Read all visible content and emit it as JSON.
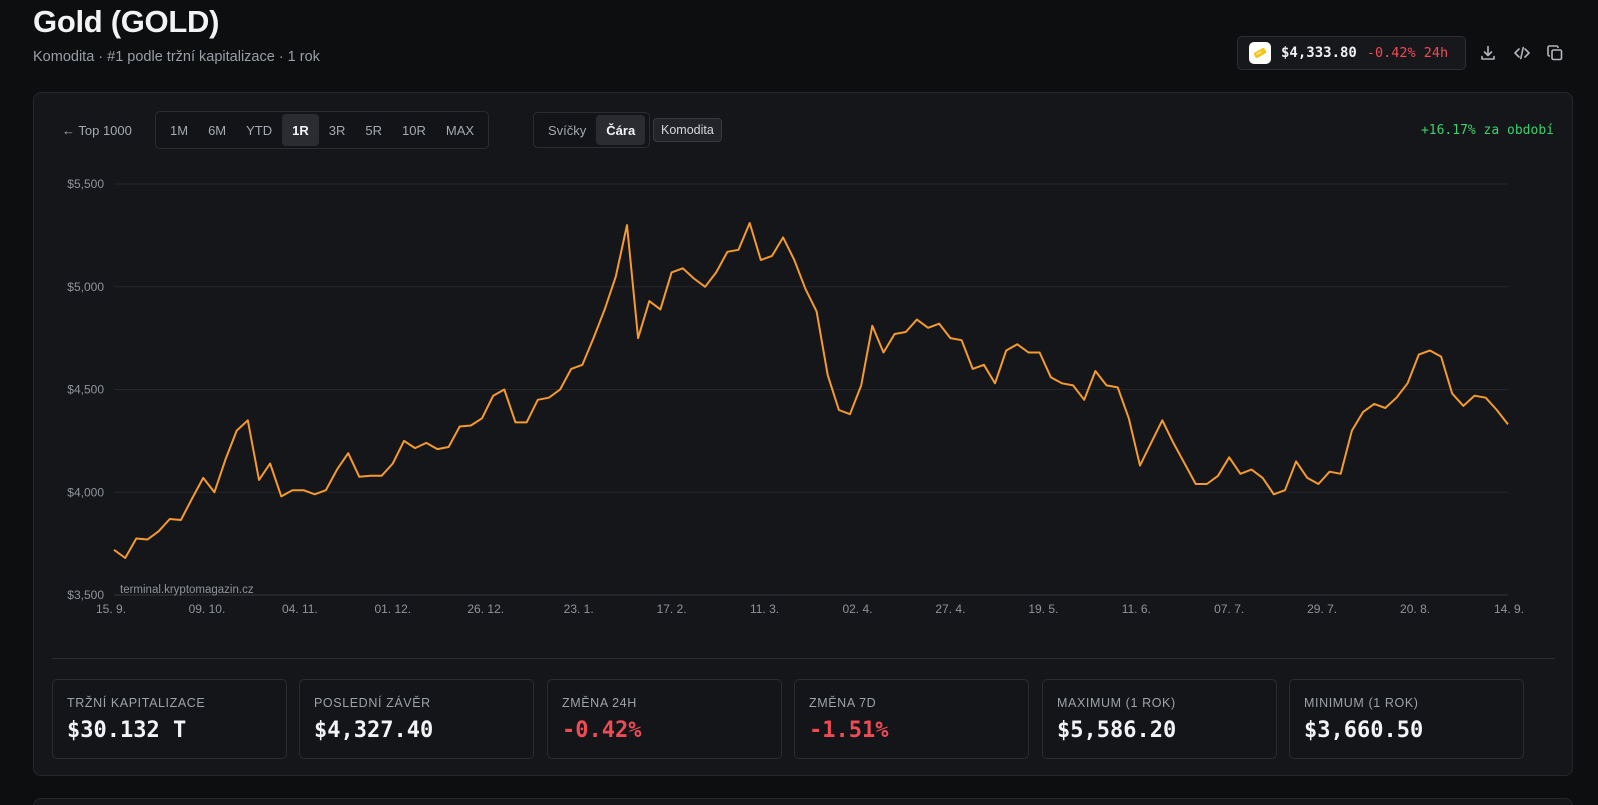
{
  "header": {
    "title": "Gold (GOLD)",
    "subtitle": "Komodita · #1 podle tržní kapitalizace · 1 rok"
  },
  "price_pill": {
    "price": "$4,333.80",
    "change": "-0.42% 24h",
    "icon": "gold-bar-icon"
  },
  "toolbar_icons": [
    "download-icon",
    "embed-code-icon",
    "copy-icon"
  ],
  "controls": {
    "back_label": "← Top 1000",
    "ranges": [
      "1M",
      "6M",
      "YTD",
      "1R",
      "3R",
      "5R",
      "10R",
      "MAX"
    ],
    "active_range": "1R",
    "chart_types": [
      "Svíčky",
      "Čára"
    ],
    "active_chart_type": "Čára",
    "asset_badge": "Komodita",
    "period_change": "+16.17% za období"
  },
  "chart_data": {
    "type": "line",
    "watermark": "terminal.kryptomagazin.cz",
    "line_color": "#f59a2f",
    "ylim": [
      3500,
      5500
    ],
    "y_ticks": [
      3500,
      4000,
      4500,
      5000,
      5500
    ],
    "y_tick_labels": [
      "$3,500",
      "$4,000",
      "$4,500",
      "$5,000",
      "$5,500"
    ],
    "x_tick_labels": [
      "15. 9.",
      "09. 10.",
      "04. 11.",
      "01. 12.",
      "26. 12.",
      "23. 1.",
      "17. 2.",
      "11. 3.",
      "02. 4.",
      "27. 4.",
      "19. 5.",
      "11. 6.",
      "07. 7.",
      "29. 7.",
      "20. 8.",
      "14. 9."
    ],
    "series": [
      {
        "values": [
          3720,
          3680,
          3775,
          3770,
          3810,
          3870,
          3865,
          3970,
          4070,
          4000,
          4160,
          4300,
          4350,
          4060,
          4140,
          3980,
          4010,
          4010,
          3990,
          4010,
          4110,
          4190,
          4075,
          4080,
          4080,
          4140,
          4250,
          4215,
          4240,
          4210,
          4220,
          4320,
          4325,
          4360,
          4470,
          4500,
          4340,
          4340,
          4450,
          4460,
          4500,
          4600,
          4620,
          4750,
          4890,
          5050,
          5300,
          4750,
          4930,
          4890,
          5070,
          5090,
          5040,
          5000,
          5070,
          5170,
          5180,
          5310,
          5130,
          5150,
          5240,
          5130,
          4990,
          4880,
          4570,
          4400,
          4380,
          4520,
          4810,
          4680,
          4770,
          4780,
          4840,
          4800,
          4820,
          4750,
          4740,
          4600,
          4620,
          4530,
          4690,
          4720,
          4680,
          4680,
          4560,
          4530,
          4520,
          4450,
          4590,
          4520,
          4510,
          4360,
          4130,
          4240,
          4350,
          4240,
          4140,
          4040,
          4040,
          4080,
          4170,
          4090,
          4110,
          4070,
          3990,
          4010,
          4150,
          4070,
          4040,
          4100,
          4090,
          4300,
          4390,
          4430,
          4410,
          4460,
          4530,
          4670,
          4690,
          4660,
          4480,
          4420,
          4470,
          4460,
          4400,
          4330
        ]
      }
    ]
  },
  "stats": [
    {
      "label": "TRŽNÍ KAPITALIZACE",
      "value": "$30.132 T",
      "negative": false
    },
    {
      "label": "POSLEDNÍ ZÁVĚR",
      "value": "$4,327.40",
      "negative": false
    },
    {
      "label": "ZMĚNA 24H",
      "value": "-0.42%",
      "negative": true
    },
    {
      "label": "ZMĚNA 7D",
      "value": "-1.51%",
      "negative": true
    },
    {
      "label": "MAXIMUM (1 ROK)",
      "value": "$5,586.20",
      "negative": false
    },
    {
      "label": "MINIMUM (1 ROK)",
      "value": "$3,660.50",
      "negative": false
    }
  ]
}
